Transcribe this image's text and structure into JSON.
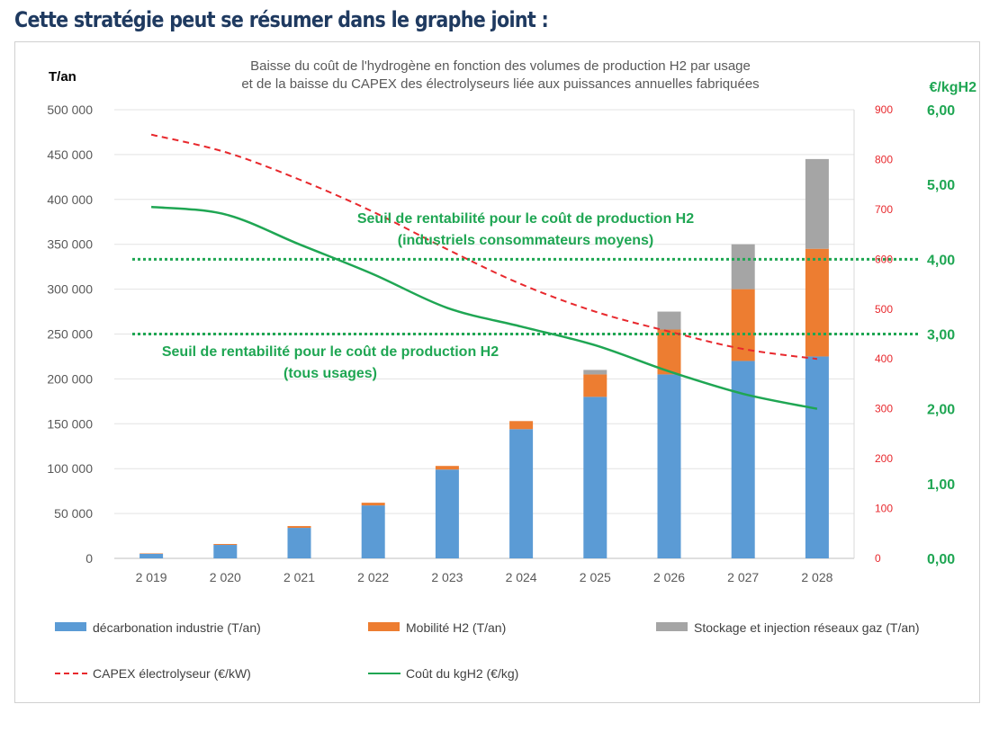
{
  "page": {
    "heading": "Cette stratégie peut se résumer dans le graphe joint :"
  },
  "chart_data": {
    "type": "bar",
    "title_lines": [
      "Baisse du coût de l'hydrogène en fonction des volumes de production H2 par usage",
      "et de la baisse du CAPEX des électrolyseurs liée aux puissances annuelles fabriquées"
    ],
    "y_left_label": "T/an",
    "y_right_green_label": "€/kgH2",
    "categories": [
      "2 019",
      "2 020",
      "2 021",
      "2 022",
      "2 023",
      "2 024",
      "2 025",
      "2 026",
      "2 027",
      "2 028"
    ],
    "y_left": {
      "min": 0,
      "max": 500000,
      "step": 50000,
      "tick_labels": [
        "0",
        "50 000",
        "100 000",
        "150 000",
        "200 000",
        "250 000",
        "300 000",
        "350 000",
        "400 000",
        "450 000",
        "500 000"
      ]
    },
    "y_right_red": {
      "min": 0,
      "max": 900,
      "step": 100,
      "tick_labels": [
        "0",
        "100",
        "200",
        "300",
        "400",
        "500",
        "600",
        "700",
        "800",
        "900"
      ]
    },
    "y_right_green": {
      "min": 0,
      "max": 6,
      "step": 1,
      "tick_labels": [
        "0,00",
        "1,00",
        "2,00",
        "3,00",
        "4,00",
        "5,00",
        "6,00"
      ]
    },
    "grid": true,
    "legend_position": "bottom",
    "series": [
      {
        "name": "décarbonation industrie (T/an)",
        "kind": "bar",
        "axis": "left",
        "color": "#5b9bd5",
        "values": [
          5000,
          15000,
          34000,
          59000,
          99000,
          144000,
          180000,
          205000,
          220000,
          225000
        ]
      },
      {
        "name": "Mobilité H2 (T/an)",
        "kind": "bar",
        "axis": "left",
        "color": "#ed7d31",
        "values": [
          500,
          1000,
          2000,
          3000,
          4000,
          9000,
          25000,
          50000,
          80000,
          120000
        ]
      },
      {
        "name": "Stockage et injection réseaux gaz (T/an)",
        "kind": "bar",
        "axis": "left",
        "color": "#a5a5a5",
        "values": [
          0,
          0,
          0,
          0,
          0,
          0,
          5000,
          20000,
          50000,
          100000
        ]
      },
      {
        "name": "CAPEX électrolyseur (€/kW)",
        "kind": "line",
        "axis": "right_red",
        "color": "#e8282d",
        "dash": true,
        "values": [
          850,
          815,
          760,
          695,
          620,
          550,
          495,
          455,
          420,
          400
        ]
      },
      {
        "name": "Coût du kgH2 (€/kg)",
        "kind": "line",
        "axis": "right_green",
        "color": "#1fa653",
        "values": [
          4.7,
          4.6,
          4.2,
          3.8,
          3.35,
          3.1,
          2.85,
          2.5,
          2.2,
          2.0
        ]
      }
    ],
    "thresholds": [
      {
        "value": 4.0,
        "axis": "right_green",
        "color": "#1fa653",
        "label_lines": [
          "Seuil de rentabilité  pour le coût de production H2",
          "(industriels consommateurs moyens)"
        ]
      },
      {
        "value": 3.0,
        "axis": "right_green",
        "color": "#1fa653",
        "label_lines": [
          "Seuil de rentabilité  pour le coût de production H2",
          "(tous usages)"
        ]
      }
    ]
  }
}
